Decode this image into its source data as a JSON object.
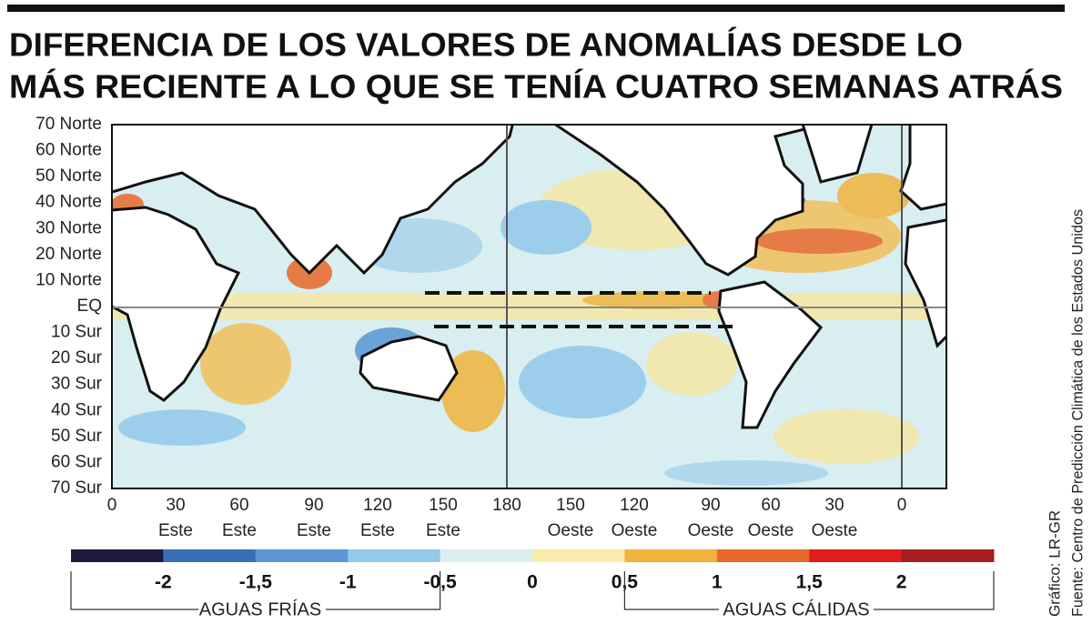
{
  "header": {
    "title_lines": [
      "DIFERENCIA DE LOS VALORES DE ANOMALÍAS DESDE LO",
      "MÁS RECIENTE A LO QUE SE TENÍA CUATRO SEMANAS ATRÁS"
    ]
  },
  "map": {
    "lat_labels": [
      "70 Norte",
      "60 Norte",
      "50 Norte",
      "40 Norte",
      "30 Norte",
      "20 Norte",
      "10 Norte",
      "EQ",
      "10 Sur",
      "20 Sur",
      "30 Sur",
      "40 Sur",
      "50 Sur",
      "60 Sur",
      "70 Sur"
    ],
    "lon_labels": [
      {
        "num": "0"
      },
      {
        "num": "30",
        "dir": "Este"
      },
      {
        "num": "60",
        "dir": "Este"
      },
      {
        "num": "90",
        "dir": "Este"
      },
      {
        "num": "120",
        "dir": "Este"
      },
      {
        "num": "150",
        "dir": "Este"
      },
      {
        "num": "180"
      },
      {
        "num": "150",
        "dir": "Oeste"
      },
      {
        "num": "120",
        "dir": "Oeste"
      },
      {
        "num": "90",
        "dir": "Oeste"
      },
      {
        "num": "60",
        "dir": "Oeste"
      },
      {
        "num": "30",
        "dir": "Oeste"
      },
      {
        "num": "0"
      }
    ]
  },
  "legend": {
    "range": [
      -2.5,
      2.5
    ],
    "colors": [
      "#1c1a3e",
      "#3a6fb8",
      "#5a97d3",
      "#92c9ec",
      "#dcefef",
      "#f7ecaa",
      "#f0b43c",
      "#e8692a",
      "#e01d1d",
      "#a71c1c"
    ],
    "ticks": [
      {
        "value": -2,
        "label": "-2"
      },
      {
        "value": -1.5,
        "label": "-1,5"
      },
      {
        "value": -1,
        "label": "-1"
      },
      {
        "value": -0.5,
        "label": "-0,5"
      },
      0,
      {
        "value": 0.5,
        "label": "0,5"
      },
      1,
      {
        "value": 1.5,
        "label": "1,5"
      },
      2
    ],
    "cold_label": "AGUAS FRÍAS",
    "warm_label": "AGUAS CÁLIDAS"
  },
  "credits": {
    "graphic": "Gráfico: LR-GR",
    "source": "Fuente: Centro de Predicción Climática de los Estados Unidos"
  }
}
